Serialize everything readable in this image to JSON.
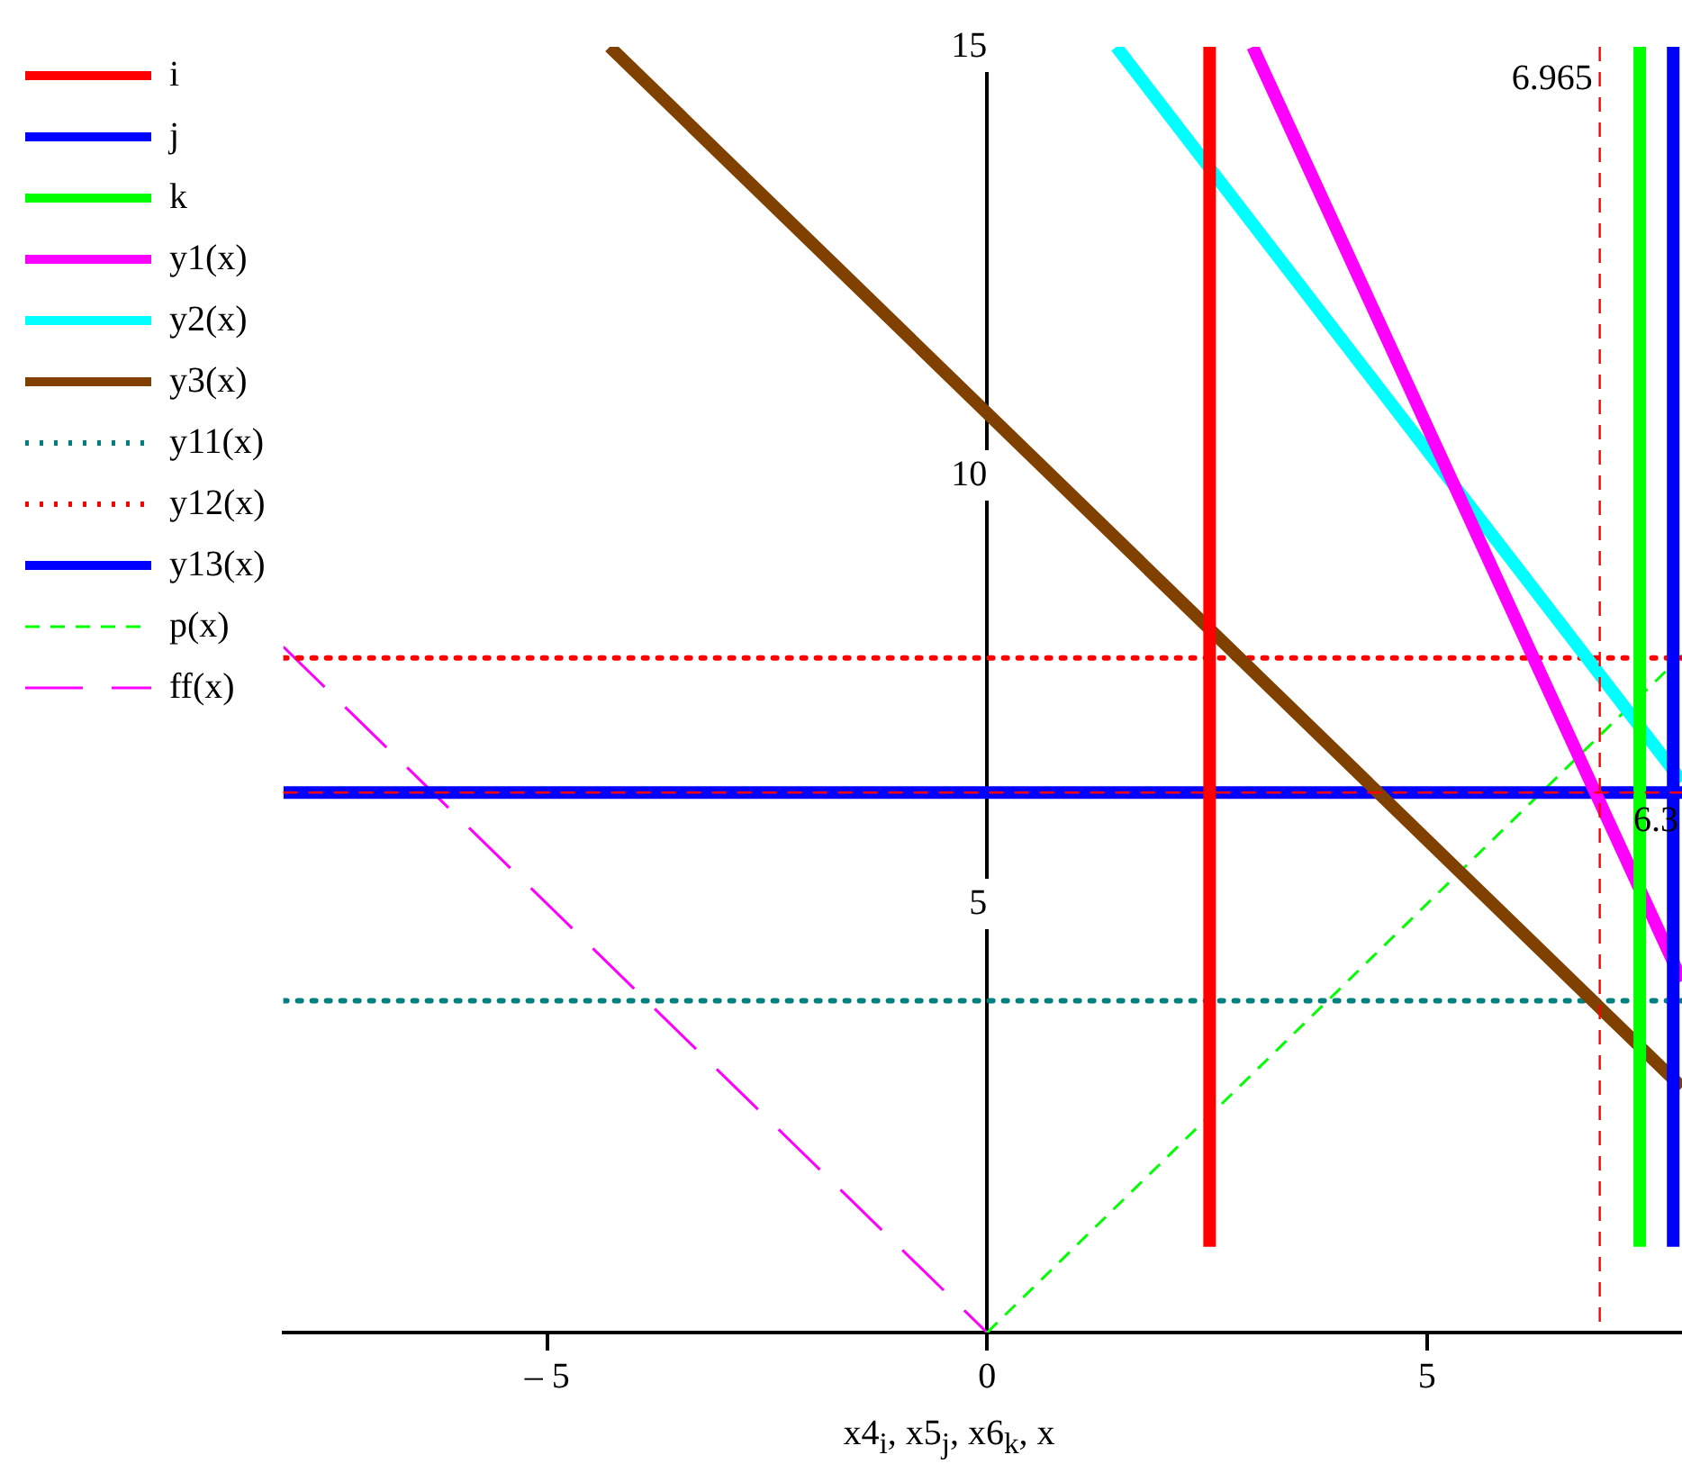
{
  "chart_data": {
    "type": "line",
    "xlabel": "x4$_{i}$, x5$_{j}$, x6$_{k}$, x",
    "xlim": [
      -8,
      7.9
    ],
    "ylim": [
      0,
      15
    ],
    "xticks": [
      {
        "value": -5,
        "label": "– 5"
      },
      0,
      5
    ],
    "yticks": [
      5,
      10,
      15
    ],
    "legend": "left",
    "marker": "none",
    "series": [
      {
        "name": "i",
        "color": "#ff0000",
        "x": [
          2.53,
          2.53
        ],
        "values": [
          1,
          15
        ],
        "line_style": "solid"
      },
      {
        "name": "j",
        "color": "#0000ff",
        "x": [
          7.8,
          7.8
        ],
        "values": [
          1,
          15
        ],
        "line_style": "solid"
      },
      {
        "name": "k",
        "color": "#00ff00",
        "x": [
          7.42,
          7.42
        ],
        "values": [
          1,
          15
        ],
        "line_style": "solid"
      },
      {
        "name": "y1(x)",
        "color": "#ff00ff",
        "x": [
          3.02,
          7.9
        ],
        "values": [
          15,
          4.1
        ],
        "line_style": "solid"
      },
      {
        "name": "y2(x)",
        "color": "#00ffff",
        "x": [
          1.47,
          7.9
        ],
        "values": [
          15,
          6.43
        ],
        "line_style": "solid"
      },
      {
        "name": "y3(x)",
        "color": "#804000",
        "x": [
          -4.29,
          7.9
        ],
        "values": [
          15,
          2.86
        ],
        "line_style": "solid"
      },
      {
        "name": "y11(x)",
        "color": "#008080",
        "x": [
          -8,
          7.9
        ],
        "values": [
          3.87,
          3.87
        ],
        "line_style": "dotted"
      },
      {
        "name": "y12(x)",
        "color": "#ff0000",
        "x": [
          -8,
          7.9
        ],
        "values": [
          7.87,
          7.87
        ],
        "line_style": "dotted"
      },
      {
        "name": "y13(x)",
        "color": "#0000ff",
        "x": [
          -8,
          7.9
        ],
        "values": [
          6.3,
          6.3
        ],
        "line_style": "solid"
      },
      {
        "name": "p(x)",
        "color": "#00ff00",
        "x": [
          0,
          7.9
        ],
        "values": [
          0,
          7.9
        ],
        "line_style": "dashed"
      },
      {
        "name": "ff(x)",
        "color": "#ff00ff",
        "x": [
          -8,
          0
        ],
        "values": [
          8,
          0
        ],
        "line_style": "dashed"
      }
    ],
    "ref_lines": [
      {
        "axis": "x",
        "value": 6.965,
        "label": "6.965",
        "color": "#ff0000",
        "line_style": "dashed"
      },
      {
        "axis": "y",
        "value": 6.3,
        "label": "6.3",
        "color": "#ff0000",
        "line_style": "dashed"
      }
    ]
  }
}
